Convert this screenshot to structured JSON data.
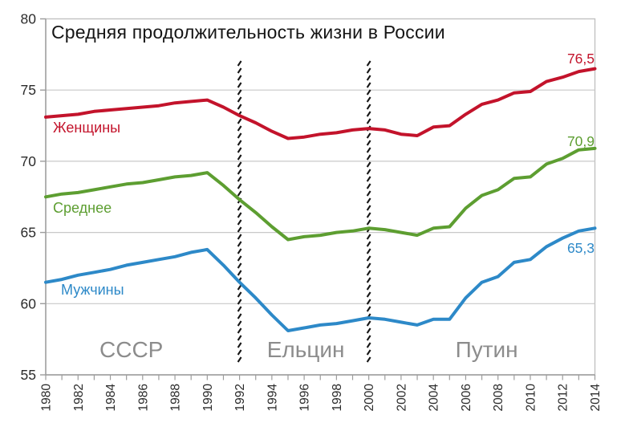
{
  "chart_data": {
    "type": "line",
    "title": "Средняя продолжительность жизни в России",
    "xlim": [
      1980,
      2014
    ],
    "ylim": [
      55,
      80
    ],
    "grid": "horizontal-only",
    "x": [
      1980,
      1981,
      1982,
      1983,
      1984,
      1985,
      1986,
      1987,
      1988,
      1989,
      1990,
      1991,
      1992,
      1993,
      1994,
      1995,
      1996,
      1997,
      1998,
      1999,
      2000,
      2001,
      2002,
      2003,
      2004,
      2005,
      2006,
      2007,
      2008,
      2009,
      2010,
      2011,
      2012,
      2013,
      2014
    ],
    "x_tick_labels": [
      "1980",
      "1982",
      "1984",
      "1986",
      "1988",
      "1990",
      "1992",
      "1994",
      "1996",
      "1998",
      "2000",
      "2002",
      "2004",
      "2006",
      "2008",
      "2010",
      "2012",
      "2014"
    ],
    "y_ticks": [
      55,
      60,
      65,
      70,
      75,
      80
    ],
    "series": [
      {
        "id": "women",
        "name": "Женщины",
        "color": "#c3132b",
        "end_label": "76,5",
        "values": [
          73.1,
          73.2,
          73.3,
          73.5,
          73.6,
          73.7,
          73.8,
          73.9,
          74.1,
          74.2,
          74.3,
          73.8,
          73.2,
          72.7,
          72.1,
          71.6,
          71.7,
          71.9,
          72.0,
          72.2,
          72.3,
          72.2,
          71.9,
          71.8,
          72.4,
          72.5,
          73.3,
          74.0,
          74.3,
          74.8,
          74.9,
          75.6,
          75.9,
          76.3,
          76.5
        ]
      },
      {
        "id": "average",
        "name": "Среднее",
        "color": "#5d9e31",
        "end_label": "70,9",
        "values": [
          67.5,
          67.7,
          67.8,
          68.0,
          68.2,
          68.4,
          68.5,
          68.7,
          68.9,
          69.0,
          69.2,
          68.3,
          67.3,
          66.4,
          65.4,
          64.5,
          64.7,
          64.8,
          65.0,
          65.1,
          65.3,
          65.2,
          65.0,
          64.8,
          65.3,
          65.4,
          66.7,
          67.6,
          68.0,
          68.8,
          68.9,
          69.8,
          70.2,
          70.8,
          70.9
        ]
      },
      {
        "id": "men",
        "name": "Мужчины",
        "color": "#2d89c8",
        "end_label": "65,3",
        "values": [
          61.5,
          61.7,
          62.0,
          62.2,
          62.4,
          62.7,
          62.9,
          63.1,
          63.3,
          63.6,
          63.8,
          62.7,
          61.5,
          60.4,
          59.2,
          58.1,
          58.3,
          58.5,
          58.6,
          58.8,
          59.0,
          58.9,
          58.7,
          58.5,
          58.9,
          58.9,
          60.4,
          61.5,
          61.9,
          62.9,
          63.1,
          64.0,
          64.6,
          65.1,
          65.3
        ]
      }
    ],
    "annotations": {
      "dividers": [
        1992,
        2000
      ],
      "era_labels": [
        {
          "text": "СССР",
          "x": 1985.3
        },
        {
          "text": "Ельцин",
          "x": 1996.1
        },
        {
          "text": "Путин",
          "x": 2007.3
        }
      ]
    },
    "colors": {
      "gridline": "#c8c8c8",
      "plot_border": "#c2c2c2",
      "axis": "#9c9c9c",
      "tick_label": "#2b2b2b",
      "divider": "#161616",
      "era_text": "#8c8c8c"
    }
  }
}
